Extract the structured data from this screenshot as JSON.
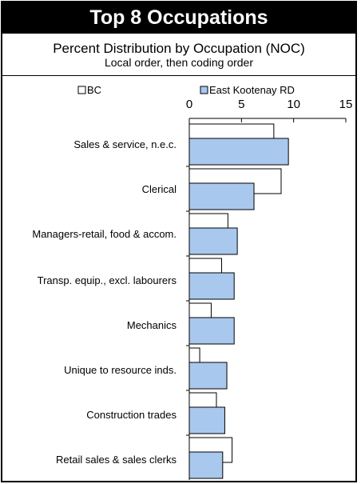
{
  "title": "Top 8 Occupations",
  "subtitle": "Percent Distribution by Occupation (NOC)",
  "subtitle2": "Local order, then coding order",
  "colors": {
    "bc": "#ffffff",
    "ek": "#a9c8ee",
    "outline": "#000000"
  },
  "chart_data": {
    "type": "bar",
    "orientation": "horizontal",
    "categories": [
      "Sales & service, n.e.c.",
      "Clerical",
      "Managers-retail, food & accom.",
      "Transp. equip., excl. labourers",
      "Mechanics",
      "Unique to resource inds.",
      "Construction trades",
      "Retail sales & sales clerks"
    ],
    "series": [
      {
        "name": "BC",
        "values": [
          8.1,
          8.8,
          3.7,
          3.1,
          2.1,
          1.0,
          2.6,
          4.1
        ]
      },
      {
        "name": "East Kootenay RD",
        "values": [
          9.5,
          6.2,
          4.6,
          4.3,
          4.3,
          3.6,
          3.4,
          3.2
        ]
      }
    ],
    "xlim": [
      0,
      15
    ],
    "xticks": [
      "0",
      "5",
      "10",
      "15"
    ],
    "legend_position": "top"
  }
}
